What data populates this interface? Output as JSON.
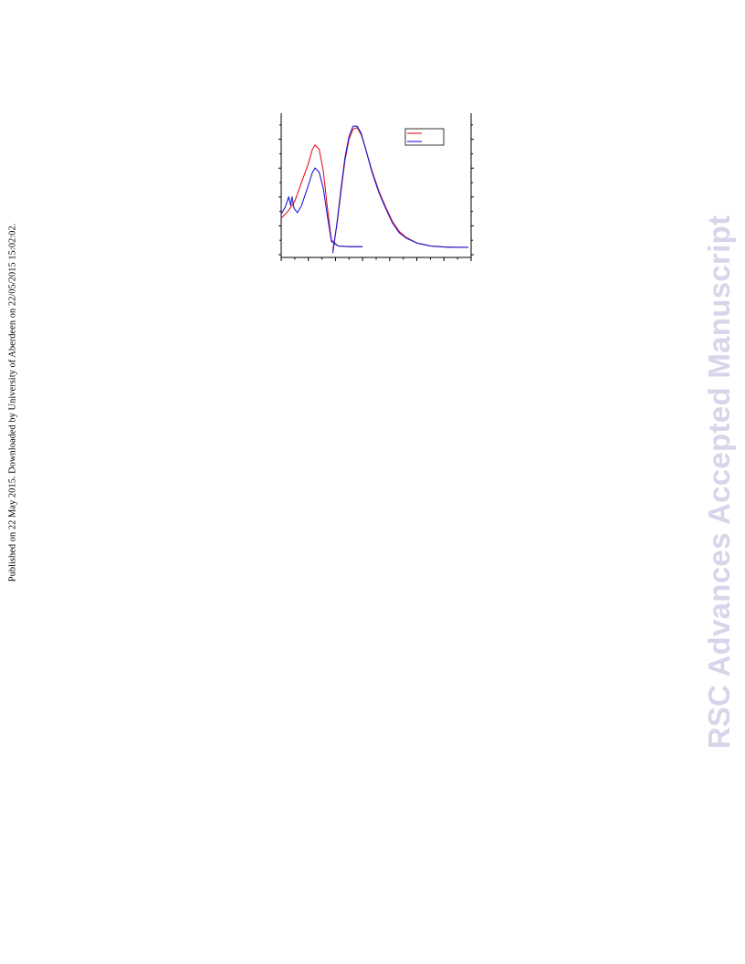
{
  "side_note": "Published on 22 May 2015. Downloaded by University of Aberdeen on 22/05/2015 15:02:02.",
  "watermark": "RSC Advances Accepted Manuscript",
  "colors": {
    "series_1": "#e8141c",
    "series_2": "#1a1ad8",
    "watermark": "#d6d6ea"
  },
  "chart_data": {
    "type": "line",
    "title": "",
    "xlabel": "",
    "ylabel": "",
    "xlim": [
      0,
      14
    ],
    "ylim": [
      0,
      10
    ],
    "grid": false,
    "legend": {
      "position": "top-right",
      "entries": [
        "",
        ""
      ]
    },
    "series": [
      {
        "color": "#e8141c",
        "segments": [
          [
            [
              0,
              2.7
            ],
            [
              0.5,
              3.2
            ],
            [
              1,
              3.9
            ],
            [
              1.5,
              5.2
            ],
            [
              2,
              6.5
            ],
            [
              2.3,
              7.5
            ],
            [
              2.5,
              7.8
            ],
            [
              2.8,
              7.5
            ],
            [
              3.1,
              6
            ],
            [
              3.4,
              3.5
            ],
            [
              3.7,
              1.2
            ],
            [
              4.2,
              0.8
            ],
            [
              5,
              0.75
            ],
            [
              6,
              0.75
            ]
          ],
          [
            [
              3.8,
              0.5
            ],
            [
              4.1,
              2.2
            ],
            [
              4.4,
              4.5
            ],
            [
              4.7,
              6.7
            ],
            [
              5,
              8.2
            ],
            [
              5.3,
              8.9
            ],
            [
              5.6,
              9.0
            ],
            [
              5.9,
              8.5
            ],
            [
              6.2,
              7.6
            ],
            [
              6.7,
              6.0
            ],
            [
              7.2,
              4.6
            ],
            [
              7.7,
              3.5
            ],
            [
              8.2,
              2.5
            ],
            [
              8.7,
              1.8
            ],
            [
              9.2,
              1.4
            ],
            [
              10,
              1.0
            ],
            [
              11,
              0.8
            ],
            [
              12,
              0.72
            ],
            [
              13,
              0.7
            ],
            [
              13.8,
              0.7
            ]
          ]
        ]
      },
      {
        "color": "#1a1ad8",
        "segments": [
          [
            [
              0,
              3.0
            ],
            [
              0.3,
              3.5
            ],
            [
              0.55,
              4.2
            ],
            [
              0.7,
              3.6
            ],
            [
              0.8,
              4.2
            ],
            [
              0.95,
              3.4
            ],
            [
              1.2,
              3.1
            ],
            [
              1.5,
              3.6
            ],
            [
              2,
              5.0
            ],
            [
              2.3,
              5.9
            ],
            [
              2.5,
              6.2
            ],
            [
              2.8,
              5.9
            ],
            [
              3.1,
              4.8
            ],
            [
              3.4,
              2.9
            ],
            [
              3.7,
              1.1
            ],
            [
              4.2,
              0.8
            ],
            [
              5,
              0.75
            ],
            [
              6,
              0.75
            ]
          ],
          [
            [
              3.8,
              0.3
            ],
            [
              4.1,
              2.3
            ],
            [
              4.4,
              4.7
            ],
            [
              4.7,
              6.9
            ],
            [
              5,
              8.4
            ],
            [
              5.3,
              9.1
            ],
            [
              5.6,
              9.1
            ],
            [
              5.9,
              8.6
            ],
            [
              6.2,
              7.6
            ],
            [
              6.7,
              5.9
            ],
            [
              7.2,
              4.5
            ],
            [
              7.7,
              3.4
            ],
            [
              8.2,
              2.4
            ],
            [
              8.7,
              1.7
            ],
            [
              9.2,
              1.35
            ],
            [
              10,
              1.0
            ],
            [
              11,
              0.8
            ],
            [
              12,
              0.72
            ],
            [
              13,
              0.7
            ],
            [
              13.8,
              0.7
            ]
          ]
        ]
      }
    ]
  }
}
